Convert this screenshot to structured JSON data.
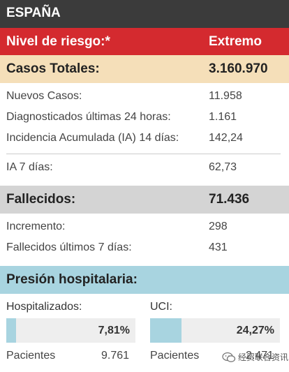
{
  "header": {
    "title": "ESPAÑA"
  },
  "risk": {
    "label": "Nivel de riesgo:*",
    "value": "Extremo"
  },
  "totals": {
    "label": "Casos Totales:",
    "value": "3.160.970"
  },
  "cases": [
    {
      "label": "Nuevos Casos:",
      "value": "11.958"
    },
    {
      "label": "Diagnosticados últimas 24 horas:",
      "value": "1.161"
    },
    {
      "label": "Incidencia Acumulada (IA) 14 días:",
      "value": "142,24"
    },
    {
      "label": "IA 7 días:",
      "value": "62,73"
    }
  ],
  "deaths": {
    "label": "Fallecidos:",
    "value": "71.436"
  },
  "death_rows": [
    {
      "label": "Incremento:",
      "value": "298"
    },
    {
      "label": "Fallecidos últimos 7 días:",
      "value": "431"
    }
  ],
  "hospital": {
    "title": "Presión hospitalaria:",
    "hospitalized": {
      "label": "Hospitalizados:",
      "percent_label": "7,81%",
      "percent": 7.81,
      "patients_label": "Pacientes",
      "patients": "9.761"
    },
    "icu": {
      "label": "UCI:",
      "percent_label": "24,27%",
      "percent": 24.27,
      "patients_label": "Pacientes",
      "patients": "2.471"
    }
  },
  "watermark": {
    "text": "经贸联合资讯"
  },
  "colors": {
    "header": "#3b3b3b",
    "risk": "#d42a2f",
    "totals": "#f5dfb9",
    "deaths": "#d4d4d4",
    "hospital": "#a8d4e0"
  }
}
